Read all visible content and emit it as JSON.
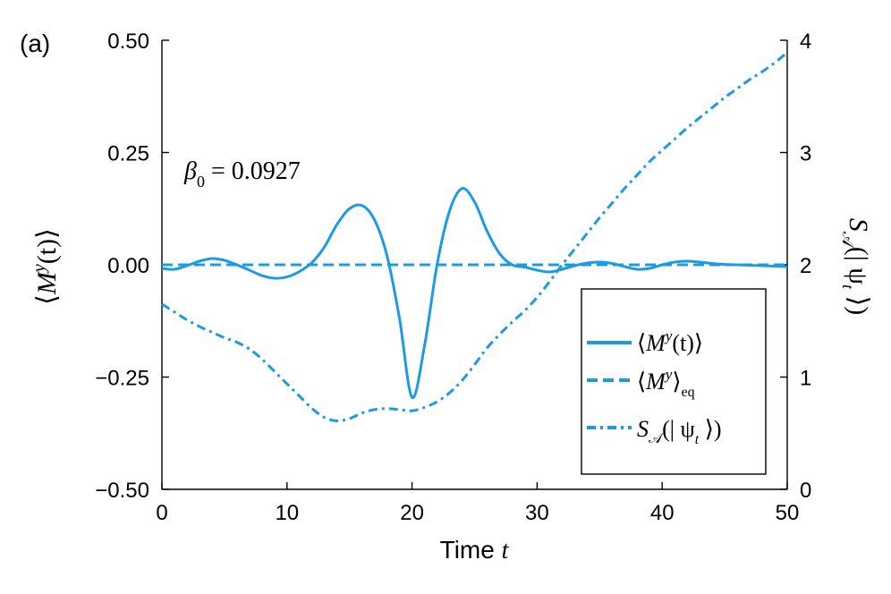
{
  "panel_label": "(a)",
  "chart_data": {
    "type": "line",
    "title": "",
    "annotation": {
      "symbol": "β",
      "subscript": "0",
      "text": " = 0.0927"
    },
    "xlabel": {
      "text": "Time ",
      "var": "t"
    },
    "ylabel_left": "⟨M^y(t)⟩",
    "ylabel_left_parts": {
      "open": "⟨",
      "sym": "M",
      "sup": "y",
      "rest": "(t)⟩"
    },
    "ylabel_right_parts": {
      "sym": "S",
      "sub": "𝒜",
      "rest": "(| ψ",
      "sub2": "t",
      "end": " ⟩)"
    },
    "xlim": [
      0,
      50
    ],
    "ylim_left": [
      -0.5,
      0.5
    ],
    "ylim_right": [
      0,
      4
    ],
    "xticks": [
      0,
      10,
      20,
      30,
      40,
      50
    ],
    "xtick_labels": [
      "0",
      "10",
      "20",
      "30",
      "40",
      "50"
    ],
    "yticks_left": [
      -0.5,
      -0.25,
      0.0,
      0.25,
      0.5
    ],
    "ytick_labels_left": [
      "−0.50",
      "−0.25",
      "0.00",
      "0.25",
      "0.50"
    ],
    "yticks_right": [
      0,
      1,
      2,
      3,
      4
    ],
    "ytick_labels_right": [
      "0",
      "1",
      "2",
      "3",
      "4"
    ],
    "color": "#1b9be6",
    "series": [
      {
        "name": "⟨M^y(t)⟩",
        "legend": {
          "open": "⟨",
          "sym": "M",
          "sup": "y",
          "rest": "(t)⟩"
        },
        "style": "solid",
        "axis": "left",
        "x": [
          0,
          1,
          2,
          3,
          4,
          5,
          6,
          7,
          8,
          9,
          10,
          11,
          12,
          13,
          14,
          15,
          16,
          17,
          18,
          19,
          20,
          21,
          22,
          23,
          24,
          25,
          26,
          27,
          28,
          29,
          30,
          31,
          32,
          33,
          34,
          35,
          36,
          37,
          38,
          39,
          40,
          41,
          42,
          43,
          44,
          45,
          46,
          47,
          48,
          49,
          50
        ],
        "values": [
          -0.008,
          -0.01,
          -0.002,
          0.008,
          0.014,
          0.01,
          0.0,
          -0.012,
          -0.024,
          -0.03,
          -0.027,
          -0.015,
          0.005,
          0.04,
          0.09,
          0.125,
          0.132,
          0.1,
          0.02,
          -0.12,
          -0.295,
          -0.18,
          0.0,
          0.12,
          0.17,
          0.14,
          0.075,
          0.025,
          0.0,
          -0.005,
          -0.012,
          -0.016,
          -0.01,
          -0.002,
          0.004,
          0.006,
          0.003,
          -0.004,
          -0.01,
          -0.008,
          0.0,
          0.006,
          0.008,
          0.006,
          0.003,
          0.001,
          0.0,
          -0.001,
          -0.002,
          -0.003,
          -0.004
        ]
      },
      {
        "name": "⟨M^y⟩_eq",
        "legend": {
          "open": "⟨",
          "sym": "M",
          "sup": "y",
          "rest": "⟩",
          "sub": "eq"
        },
        "style": "dashed",
        "axis": "left",
        "x": [
          0,
          50
        ],
        "values": [
          0.0,
          0.0
        ]
      },
      {
        "name": "S_𝒜(|ψ_t⟩)",
        "legend": {
          "sym": "S",
          "sub": "𝒜",
          "rest": "(| ψ",
          "sub2": "t",
          "end": " ⟩)"
        },
        "style": "dashdot",
        "axis": "right",
        "x": [
          0,
          1,
          2,
          3,
          4,
          5,
          6,
          7,
          8,
          9,
          10,
          11,
          12,
          13,
          14,
          15,
          16,
          17,
          18,
          19,
          20,
          21,
          22,
          23,
          24,
          25,
          26,
          27,
          28,
          29,
          30,
          31,
          32,
          33,
          34,
          35,
          36,
          37,
          38,
          39,
          40,
          41,
          42,
          43,
          44,
          45,
          46,
          47,
          48,
          49,
          50
        ],
        "values": [
          1.65,
          1.58,
          1.51,
          1.45,
          1.4,
          1.35,
          1.31,
          1.25,
          1.16,
          1.05,
          0.94,
          0.83,
          0.72,
          0.64,
          0.61,
          0.63,
          0.68,
          0.71,
          0.72,
          0.71,
          0.7,
          0.73,
          0.78,
          0.86,
          0.97,
          1.11,
          1.26,
          1.38,
          1.49,
          1.59,
          1.71,
          1.85,
          2.0,
          2.14,
          2.28,
          2.42,
          2.55,
          2.68,
          2.8,
          2.92,
          3.02,
          3.12,
          3.22,
          3.31,
          3.4,
          3.49,
          3.57,
          3.65,
          3.72,
          3.8,
          3.89
        ]
      }
    ],
    "legend_position": "bottom-right"
  }
}
